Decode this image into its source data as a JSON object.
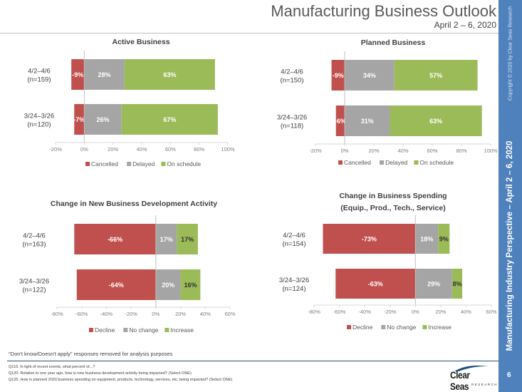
{
  "header": {
    "title": "Manufacturing Business Outlook",
    "subtitle": "April 2 – 6, 2020"
  },
  "sidebar": {
    "title": "Manufacturing Industry Perspective – April 2 – 6, 2020",
    "copyright": "Copyright © 2020 by Clear Seas Research",
    "page_number": "6",
    "color": "#4f81bd"
  },
  "footer": {
    "note": "\"Don't know/Doesn't apply\" responses removed for analysis purposes",
    "footnotes": [
      "Q110.  In light of recent events, what percent of...?",
      "Q120.  Relative to one year ago, how is new business development activity being impacted? (Select ONE)",
      "Q125.  How is planned 2020 business spending on equipment, products, technology, services, etc. being impacted? (Select ONE)"
    ],
    "logo": {
      "name": "Clear Seas",
      "sub": "RESEARCH"
    }
  },
  "chart_data": [
    {
      "type": "bar",
      "stacked": true,
      "orientation": "horizontal",
      "title": "Active Business",
      "categories": [
        "4/2–4/6 (n=159)",
        "3/24–3/26 (n=120)"
      ],
      "xlim": [
        -20,
        100
      ],
      "ticks": [
        "-20%",
        "0%",
        "20%",
        "40%",
        "60%",
        "80%",
        "100%"
      ],
      "tick_values": [
        -20,
        0,
        20,
        40,
        60,
        80,
        100
      ],
      "series": [
        {
          "name": "Cancelled",
          "values": [
            -9,
            -7
          ],
          "labels": [
            "-9%",
            "-7%"
          ],
          "color": "#c0504d"
        },
        {
          "name": "Delayed",
          "values": [
            28,
            26
          ],
          "labels": [
            "28%",
            "26%"
          ],
          "color": "#a5a5a5"
        },
        {
          "name": "On schedule",
          "values": [
            63,
            67
          ],
          "labels": [
            "63%",
            "67%"
          ],
          "color": "#9bbb59"
        }
      ],
      "legend": "bottom"
    },
    {
      "type": "bar",
      "stacked": true,
      "orientation": "horizontal",
      "title": "Planned Business",
      "categories": [
        "4/2–4/6 (n=150)",
        "3/24–3/26 (n=118)"
      ],
      "xlim": [
        -20,
        100
      ],
      "ticks": [
        "-20%",
        "0%",
        "20%",
        "40%",
        "60%",
        "80%",
        "100%"
      ],
      "tick_values": [
        -20,
        0,
        20,
        40,
        60,
        80,
        100
      ],
      "series": [
        {
          "name": "Cancelled",
          "values": [
            -9,
            -6
          ],
          "labels": [
            "-9%",
            "-6%"
          ],
          "color": "#c0504d"
        },
        {
          "name": "Delayed",
          "values": [
            34,
            31
          ],
          "labels": [
            "34%",
            "31%"
          ],
          "color": "#a5a5a5"
        },
        {
          "name": "On schedule",
          "values": [
            57,
            63
          ],
          "labels": [
            "57%",
            "63%"
          ],
          "color": "#9bbb59"
        }
      ],
      "legend": "bottom"
    },
    {
      "type": "bar",
      "stacked": true,
      "orientation": "horizontal",
      "title": "Change in New Business Development Activity",
      "categories": [
        "4/2–4/6 (n=163)",
        "3/24–3/26 (n=122)"
      ],
      "xlim": [
        -80,
        60
      ],
      "ticks": [
        "-80%",
        "-60%",
        "-40%",
        "-20%",
        "0%",
        "20%",
        "40%",
        "60%"
      ],
      "tick_values": [
        -80,
        -60,
        -40,
        -20,
        0,
        20,
        40,
        60
      ],
      "series": [
        {
          "name": "Decline",
          "values": [
            -66,
            -64
          ],
          "labels": [
            "-66%",
            "-64%"
          ],
          "color": "#c0504d"
        },
        {
          "name": "No change",
          "values": [
            17,
            20
          ],
          "labels": [
            "17%",
            "20%"
          ],
          "color": "#a5a5a5"
        },
        {
          "name": "Increase",
          "values": [
            17,
            16
          ],
          "labels": [
            "17%",
            "16%"
          ],
          "color": "#9bbb59"
        }
      ],
      "legend": "bottom"
    },
    {
      "type": "bar",
      "stacked": true,
      "orientation": "horizontal",
      "title": "Change in Business Spending (Equip., Prod., Tech., Service)",
      "categories": [
        "4/2–4/6 (n=154)",
        "3/24–3/26 (n=124)"
      ],
      "xlim": [
        -80,
        60
      ],
      "ticks": [
        "-80%",
        "-60%",
        "-40%",
        "-20%",
        "0%",
        "20%",
        "40%",
        "60%"
      ],
      "tick_values": [
        -80,
        -60,
        -40,
        -20,
        0,
        20,
        40,
        60
      ],
      "series": [
        {
          "name": "Decline",
          "values": [
            -73,
            -63
          ],
          "labels": [
            "-73%",
            "-63%"
          ],
          "color": "#c0504d"
        },
        {
          "name": "No change",
          "values": [
            18,
            29
          ],
          "labels": [
            "18%",
            "29%"
          ],
          "color": "#a5a5a5"
        },
        {
          "name": "Increase",
          "values": [
            9,
            8
          ],
          "labels": [
            "9%",
            "8%"
          ],
          "color": "#9bbb59"
        }
      ],
      "legend": "bottom"
    }
  ]
}
